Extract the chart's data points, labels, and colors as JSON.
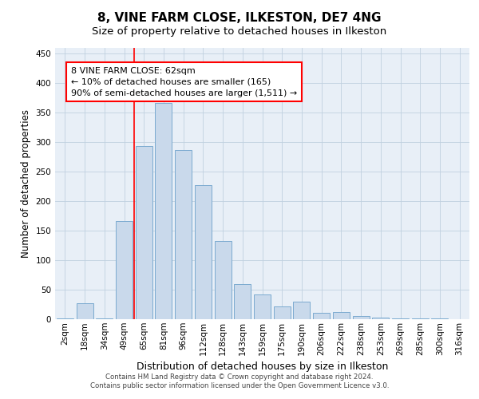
{
  "title": "8, VINE FARM CLOSE, ILKESTON, DE7 4NG",
  "subtitle": "Size of property relative to detached houses in Ilkeston",
  "xlabel": "Distribution of detached houses by size in Ilkeston",
  "ylabel": "Number of detached properties",
  "bar_labels": [
    "2sqm",
    "18sqm",
    "34sqm",
    "49sqm",
    "65sqm",
    "81sqm",
    "96sqm",
    "112sqm",
    "128sqm",
    "143sqm",
    "159sqm",
    "175sqm",
    "190sqm",
    "206sqm",
    "222sqm",
    "238sqm",
    "253sqm",
    "269sqm",
    "285sqm",
    "300sqm",
    "316sqm"
  ],
  "bar_values": [
    1,
    27,
    1,
    167,
    293,
    367,
    287,
    227,
    133,
    60,
    42,
    22,
    30,
    11,
    12,
    5,
    3,
    2,
    1,
    1,
    0
  ],
  "bar_color": "#c9d9eb",
  "bar_edge_color": "#7baacf",
  "bar_edge_width": 0.7,
  "grid_color": "#c0d0e0",
  "bg_color": "#e8eff7",
  "ylim": [
    0,
    460
  ],
  "yticks": [
    0,
    50,
    100,
    150,
    200,
    250,
    300,
    350,
    400,
    450
  ],
  "red_line_x": 4.0,
  "annotation_text": "8 VINE FARM CLOSE: 62sqm\n← 10% of detached houses are smaller (165)\n90% of semi-detached houses are larger (1,511) →",
  "annotation_box_color": "white",
  "annotation_box_edge_color": "red",
  "title_fontsize": 11,
  "subtitle_fontsize": 9.5,
  "xlabel_fontsize": 9,
  "ylabel_fontsize": 8.5,
  "tick_fontsize": 7.5,
  "annot_fontsize": 8,
  "footer_line1": "Contains HM Land Registry data © Crown copyright and database right 2024.",
  "footer_line2": "Contains public sector information licensed under the Open Government Licence v3.0."
}
